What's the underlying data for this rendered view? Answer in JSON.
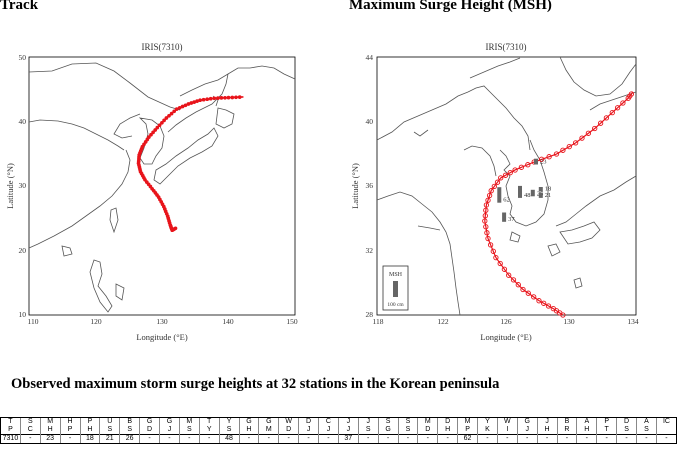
{
  "headings": {
    "left": "Track",
    "right": "Maximum Surge Height (MSH)"
  },
  "left_map": {
    "title": "IRIS(7310)",
    "xlabel": "Longitude (°E)",
    "ylabel": "Latitude (°N)",
    "xticks": [
      "110",
      "120",
      "130",
      "140",
      "150"
    ],
    "yticks": [
      "10",
      "20",
      "30",
      "40",
      "50"
    ],
    "xlim": [
      110,
      150
    ],
    "ylim": [
      10,
      50
    ],
    "track_color": "#e8141b",
    "track": [
      [
        132.0,
        23.6
      ],
      [
        131.5,
        23.3
      ],
      [
        131.2,
        24.1
      ],
      [
        130.8,
        25.5
      ],
      [
        130.2,
        27.0
      ],
      [
        129.4,
        28.5
      ],
      [
        128.4,
        29.8
      ],
      [
        127.3,
        31.2
      ],
      [
        126.6,
        32.5
      ],
      [
        126.3,
        33.8
      ],
      [
        126.4,
        35.1
      ],
      [
        126.9,
        36.4
      ],
      [
        127.9,
        37.9
      ],
      [
        129.2,
        39.4
      ],
      [
        130.6,
        40.9
      ],
      [
        132.2,
        42.3
      ],
      [
        134.0,
        43.1
      ],
      [
        135.8,
        43.7
      ],
      [
        138.0,
        44.0
      ],
      [
        140.2,
        44.1
      ],
      [
        142.5,
        44.2
      ]
    ]
  },
  "right_map": {
    "title": "IRIS(7310)",
    "xlabel": "Longitude (°E)",
    "ylabel": "Latitude (°N)",
    "xticks": [
      "118",
      "122",
      "126",
      "130",
      "134"
    ],
    "yticks": [
      "28",
      "32",
      "36",
      "40",
      "44"
    ],
    "xlim": [
      118,
      134
    ],
    "ylim": [
      28,
      44
    ],
    "track_color": "#e8141b",
    "track": [
      [
        129.6,
        28.0
      ],
      [
        129.0,
        28.4
      ],
      [
        128.1,
        28.9
      ],
      [
        127.1,
        29.6
      ],
      [
        126.2,
        30.5
      ],
      [
        125.4,
        31.6
      ],
      [
        124.9,
        32.8
      ],
      [
        124.7,
        33.9
      ],
      [
        124.8,
        34.9
      ],
      [
        125.1,
        35.8
      ],
      [
        125.7,
        36.6
      ],
      [
        126.6,
        37.1
      ],
      [
        127.8,
        37.6
      ],
      [
        129.2,
        38.1
      ],
      [
        130.4,
        38.8
      ],
      [
        131.6,
        39.7
      ],
      [
        132.7,
        40.7
      ],
      [
        133.7,
        41.6
      ],
      [
        134.0,
        42.0
      ]
    ],
    "surge_labels": [
      {
        "text": "23",
        "lon": 128.1,
        "lat": 37.7
      },
      {
        "text": "18",
        "lon": 128.4,
        "lat": 36.0
      },
      {
        "text": "26",
        "lon": 127.9,
        "lat": 35.7
      },
      {
        "text": "21",
        "lon": 128.4,
        "lat": 35.6
      },
      {
        "text": "48",
        "lon": 127.1,
        "lat": 35.6
      },
      {
        "text": "62",
        "lon": 125.8,
        "lat": 35.3
      },
      {
        "text": "37",
        "lon": 126.1,
        "lat": 34.1
      }
    ],
    "legend": {
      "label": "MSH",
      "scale": "100 cm"
    }
  },
  "section_title": "Observed maximum storm surge heights at 32 stations in the Korean peninsula",
  "station_table": {
    "header_top": [
      "T",
      "S",
      "M",
      "H",
      "P",
      "U",
      "B",
      "G",
      "G",
      "M",
      "T",
      "Y",
      "G",
      "G",
      "W",
      "D",
      "C",
      "J",
      "J",
      "S",
      "S",
      "M",
      "D",
      "M",
      "Y",
      "W",
      "G",
      "J",
      "B",
      "A",
      "P",
      "D",
      "A",
      "IC"
    ],
    "header_bottom": [
      "P",
      "C",
      "H",
      "P",
      "H",
      "S",
      "S",
      "D",
      "J",
      "S",
      "Y",
      "S",
      "H",
      "M",
      "D",
      "J",
      "J",
      "J",
      "S",
      "G",
      "S",
      "D",
      "H",
      "P",
      "K",
      "I",
      "J",
      "H",
      "R",
      "H",
      "T",
      "S",
      "S",
      ""
    ],
    "values": [
      "7310",
      "-",
      "23",
      "-",
      "18",
      "21",
      "26",
      "-",
      "-",
      "-",
      "-",
      "48",
      "-",
      "-",
      "-",
      "-",
      "-",
      "37",
      "-",
      "-",
      "-",
      "-",
      "-",
      "62",
      "-",
      "-",
      "-",
      "-",
      "-",
      "-",
      "-",
      "-",
      "-",
      "-"
    ]
  }
}
